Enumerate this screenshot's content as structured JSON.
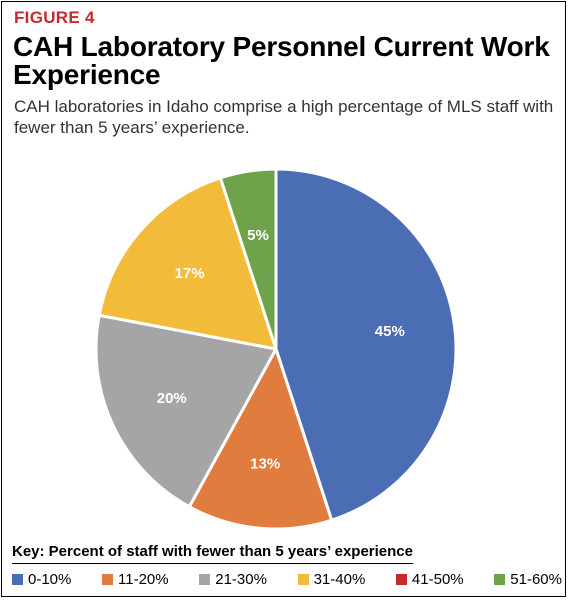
{
  "figure_label": "FIGURE 4",
  "title": "CAH Laboratory Personnel Current Work Experience",
  "subtitle": "CAH laboratories in Idaho comprise a high percentage of MLS staff with fewer than 5 years’ experience.",
  "chart_data": {
    "type": "pie",
    "legend_title": "Key: Percent of staff with fewer than 5 years’ experience",
    "legend_placement": "bottom",
    "categories": [
      "0-10%",
      "11-20%",
      "21-30%",
      "31-40%",
      "41-50%",
      "51-60%"
    ],
    "values": [
      45,
      13,
      20,
      17,
      0,
      5
    ],
    "data_labels": [
      "45%",
      "13%",
      "20%",
      "17%",
      "",
      "5%"
    ],
    "colors": [
      "#4a6db3",
      "#e07c3e",
      "#a5a5a5",
      "#f3bb3a",
      "#c8292d",
      "#6ea34b"
    ]
  }
}
